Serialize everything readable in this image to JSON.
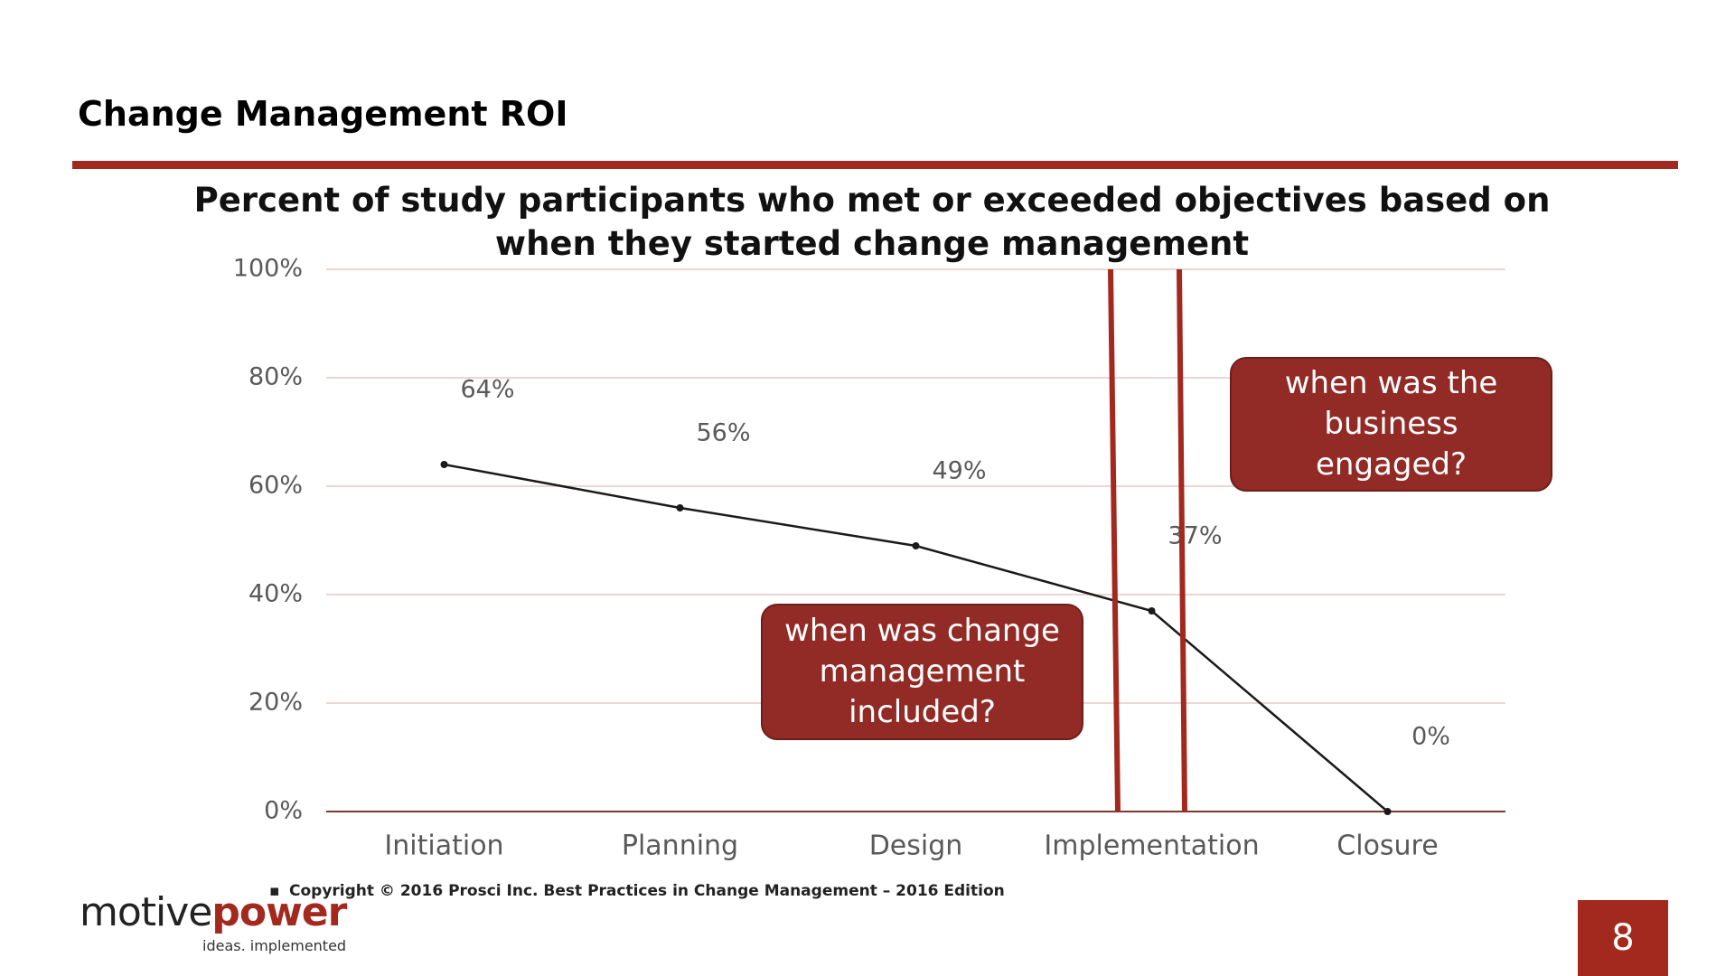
{
  "slide": {
    "title": "Change Management ROI",
    "footnote": "Copyright © 2016 Prosci Inc. Best Practices in Change Management – 2016 Edition",
    "logo": {
      "name_dark": "motive",
      "name_accent": "power",
      "tagline": "ideas. implemented"
    },
    "page_number": 8
  },
  "chart_data": {
    "type": "line",
    "title": "Percent of study participants who met or exceeded objectives based on when they started change management",
    "categories": [
      "Initiation",
      "Planning",
      "Design",
      "Implementation",
      "Closure"
    ],
    "values": [
      64,
      56,
      49,
      37,
      0
    ],
    "value_labels": [
      "64%",
      "56%",
      "49%",
      "37%",
      "0%"
    ],
    "color": "#1a1a1a",
    "ylim": [
      0,
      100
    ],
    "yticks": [
      {
        "value": 0,
        "label": "0%"
      },
      {
        "value": 20,
        "label": "20%"
      },
      {
        "value": 40,
        "label": "40%"
      },
      {
        "value": 60,
        "label": "60%"
      },
      {
        "value": 80,
        "label": "80%"
      },
      {
        "value": 100,
        "label": "100%"
      }
    ],
    "grid": true,
    "annotations": [
      "when was change management included?",
      "when was the business engaged?"
    ]
  }
}
